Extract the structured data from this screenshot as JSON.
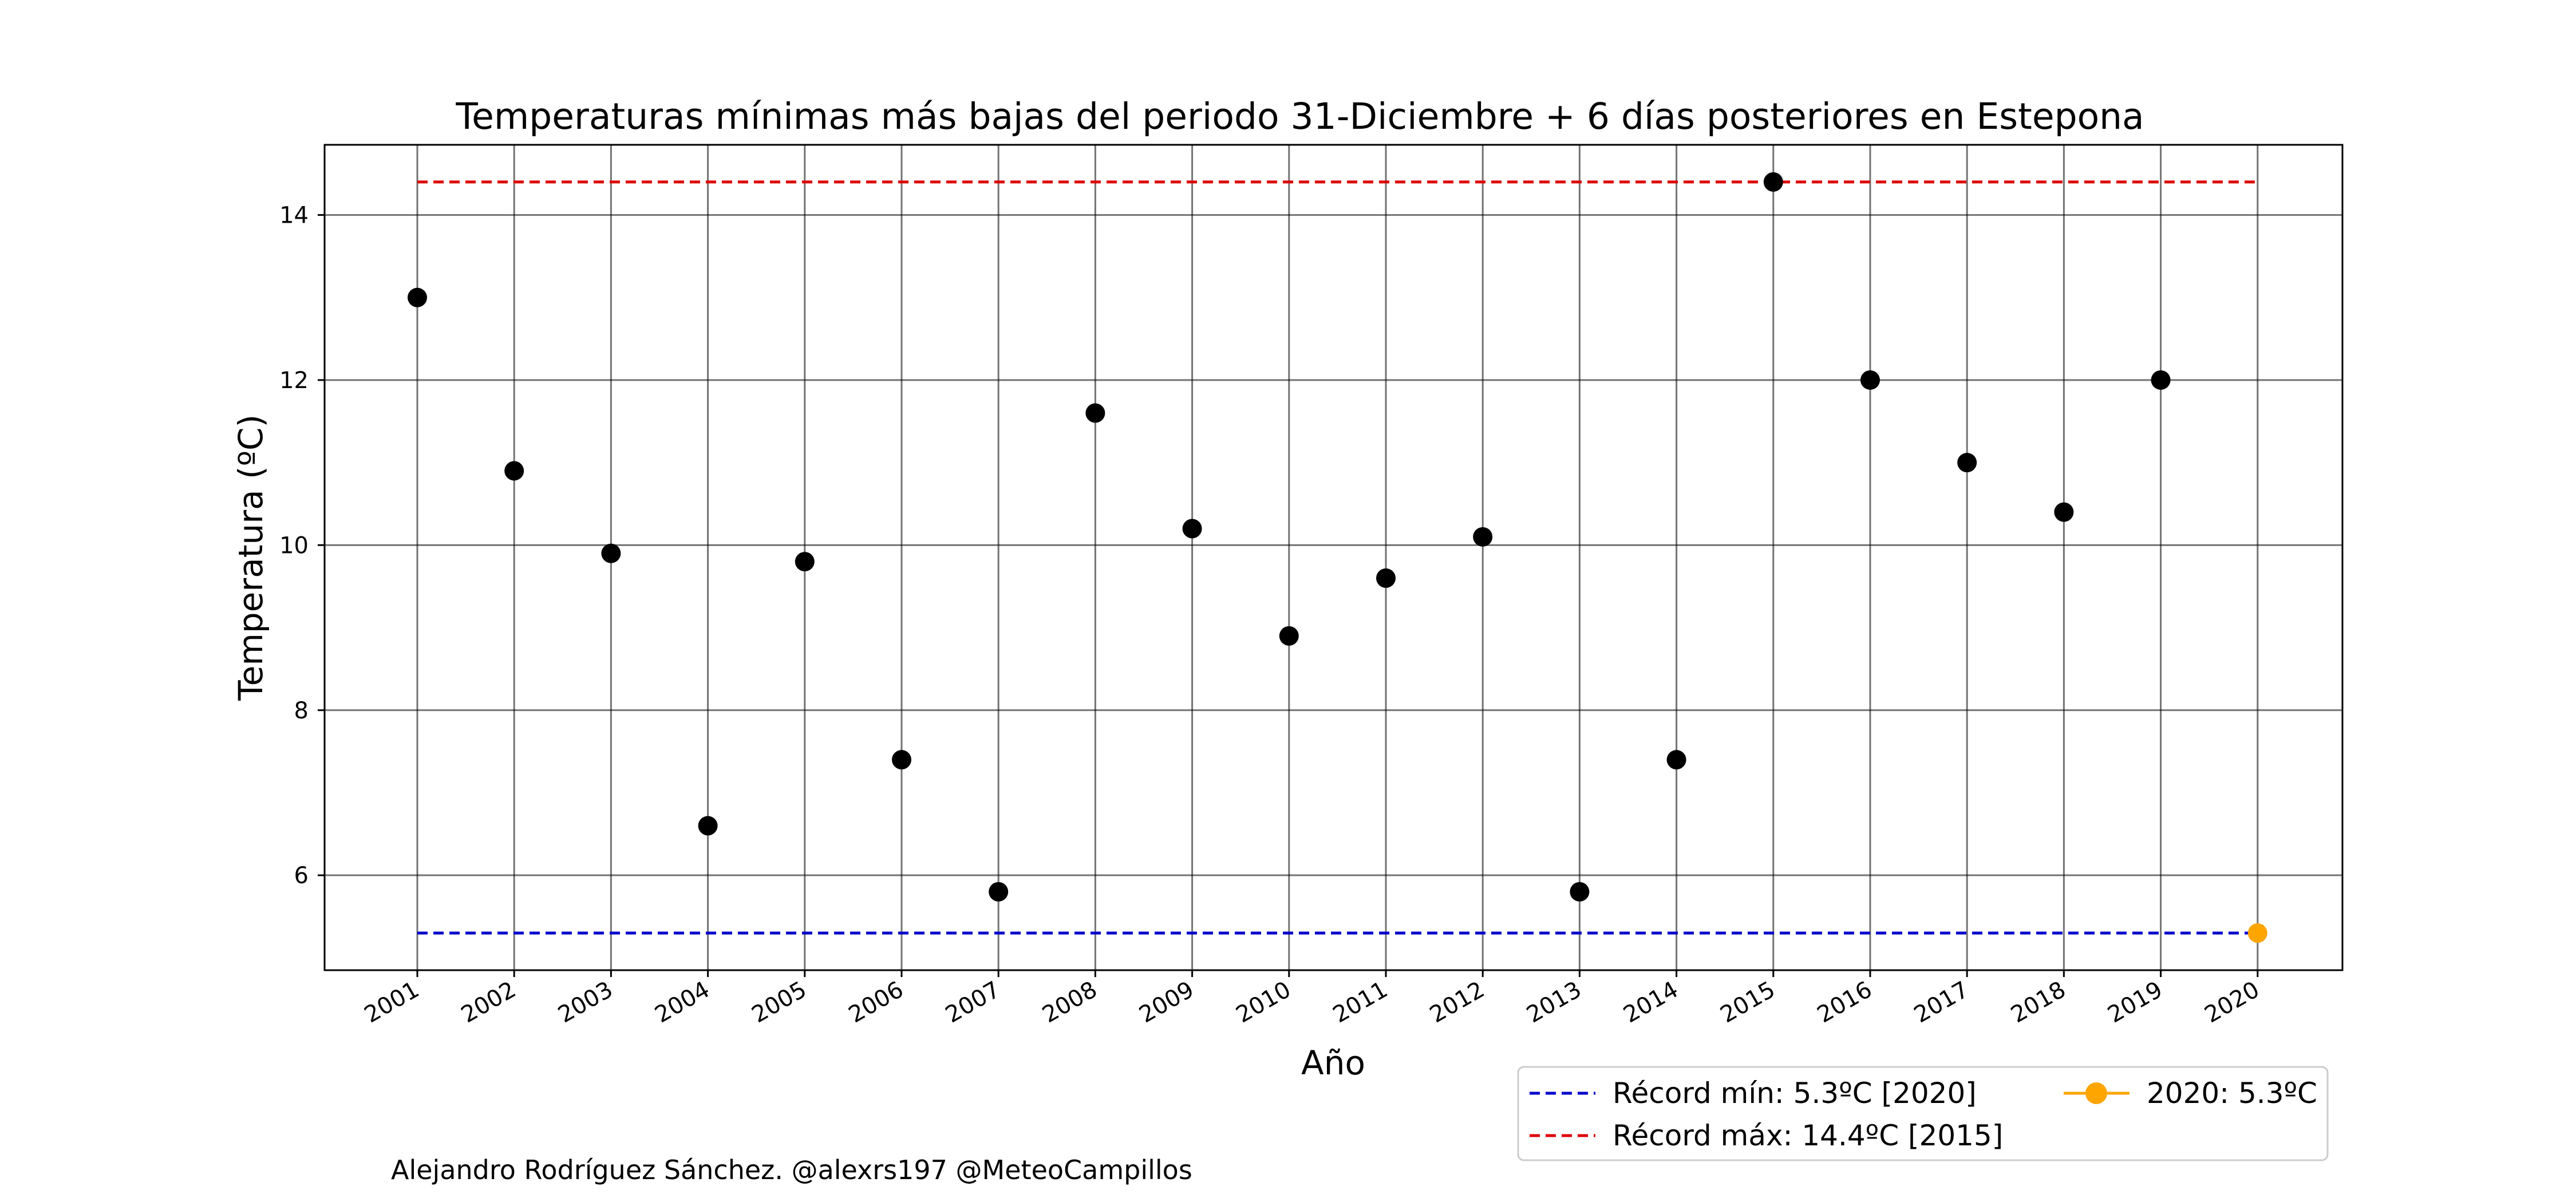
{
  "chart_data": {
    "type": "scatter",
    "title": "Temperaturas mínimas más bajas del periodo 31-Diciembre + 6 días posteriores en Estepona",
    "xlabel": "Año",
    "ylabel": "Temperatura (ºC)",
    "x": [
      "2001",
      "2002",
      "2003",
      "2004",
      "2005",
      "2006",
      "2007",
      "2008",
      "2009",
      "2010",
      "2011",
      "2012",
      "2013",
      "2014",
      "2015",
      "2016",
      "2017",
      "2018",
      "2019",
      "2020"
    ],
    "series": [
      {
        "color": "#000000",
        "values": [
          13.0,
          10.9,
          9.9,
          6.6,
          9.8,
          7.4,
          5.8,
          11.6,
          10.2,
          8.9,
          9.6,
          10.1,
          5.8,
          7.4,
          14.4,
          12.0,
          11.0,
          10.4,
          12.0,
          null
        ]
      },
      {
        "name": "2020: 5.3ºC",
        "color": "#ffa500",
        "values": [
          null,
          null,
          null,
          null,
          null,
          null,
          null,
          null,
          null,
          null,
          null,
          null,
          null,
          null,
          null,
          null,
          null,
          null,
          null,
          5.3
        ]
      }
    ],
    "reference_lines": [
      {
        "name": "Récord mín: 5.3ºC [2020]",
        "value": 5.3,
        "color": "#0000cc",
        "style": "dashed"
      },
      {
        "name": "Récord máx: 14.4ºC [2015]",
        "value": 14.4,
        "color": "#dd0000",
        "style": "dashed"
      }
    ],
    "ylim": [
      4.85,
      14.85
    ],
    "yticks": [
      6,
      8,
      10,
      12,
      14
    ],
    "grid": true,
    "legend_position": "bottom-right"
  },
  "credit": "Alejandro Rodríguez Sánchez. @alexrs197 @MeteoCampillos",
  "colors": {
    "axes": "#000000",
    "grid": "#000000",
    "background": "#ffffff"
  }
}
